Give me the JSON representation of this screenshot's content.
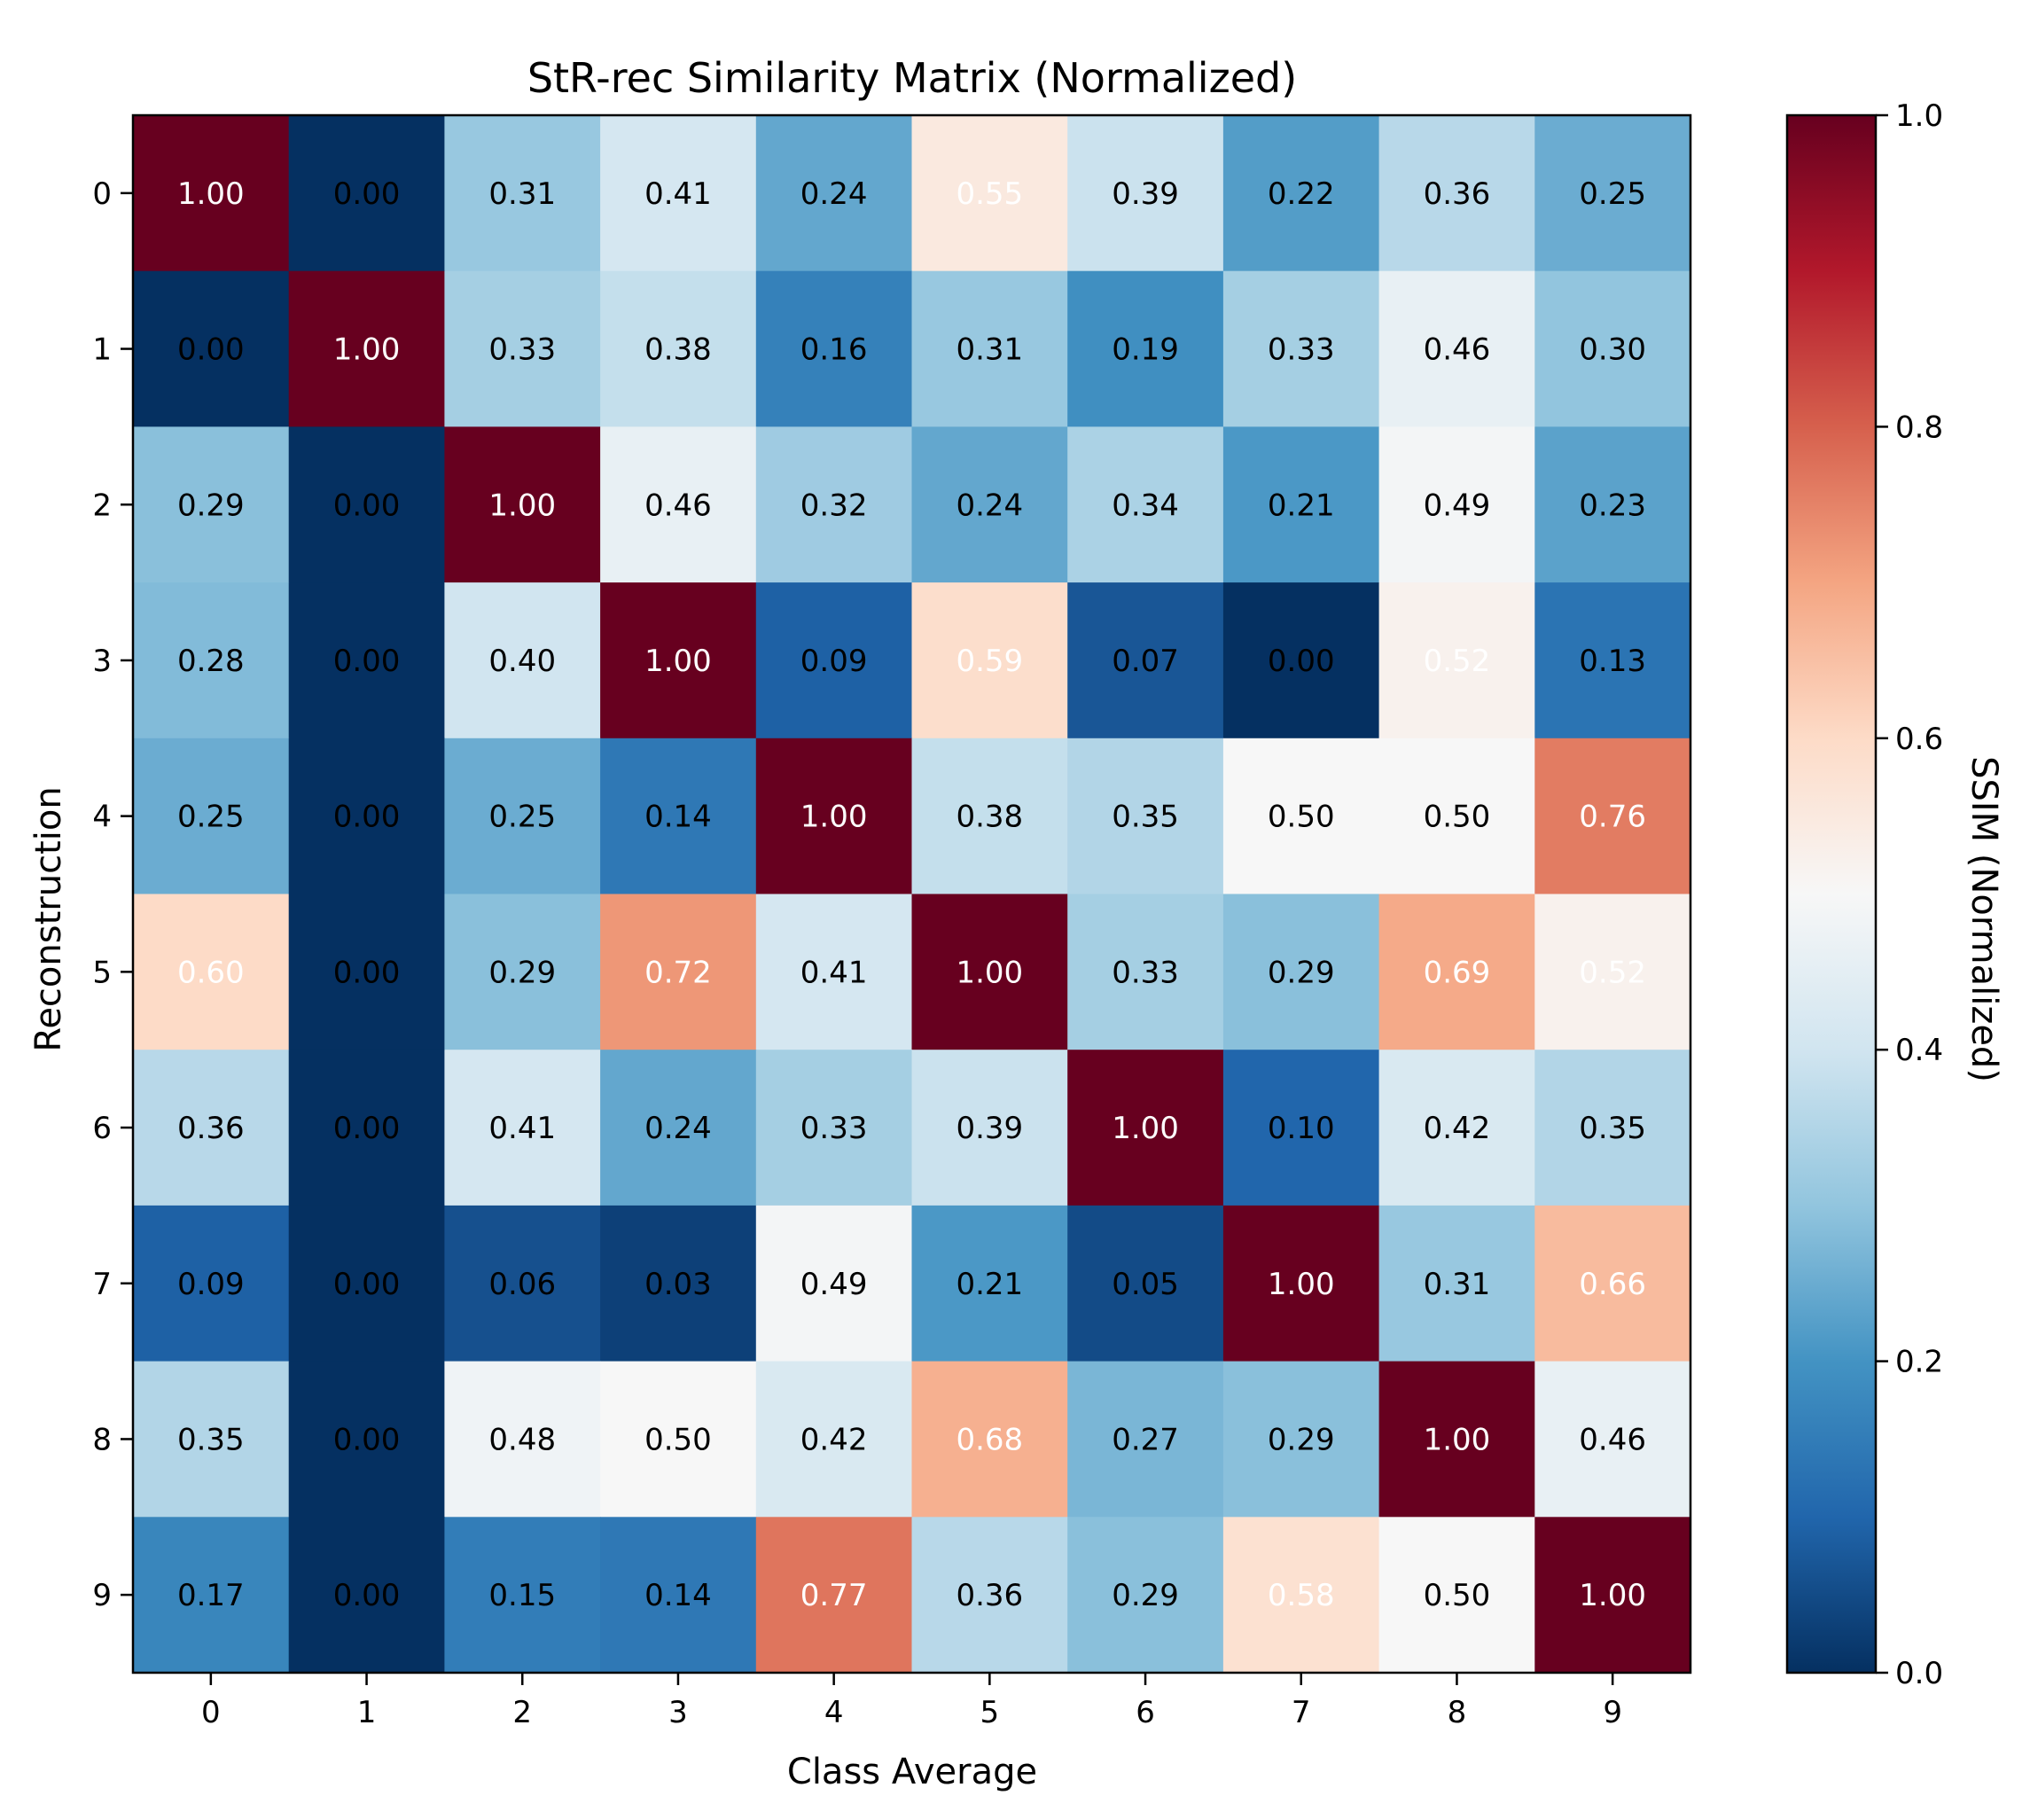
{
  "chart_data": {
    "type": "heatmap",
    "title": "StR-rec Similarity Matrix (Normalized)",
    "xlabel": "Class Average",
    "ylabel": "Reconstruction",
    "x_categories": [
      "0",
      "1",
      "2",
      "3",
      "4",
      "5",
      "6",
      "7",
      "8",
      "9"
    ],
    "y_categories": [
      "0",
      "1",
      "2",
      "3",
      "4",
      "5",
      "6",
      "7",
      "8",
      "9"
    ],
    "values": [
      [
        1.0,
        0.0,
        0.31,
        0.41,
        0.24,
        0.55,
        0.39,
        0.22,
        0.36,
        0.25
      ],
      [
        0.0,
        1.0,
        0.33,
        0.38,
        0.16,
        0.31,
        0.19,
        0.33,
        0.46,
        0.3
      ],
      [
        0.29,
        0.0,
        1.0,
        0.46,
        0.32,
        0.24,
        0.34,
        0.21,
        0.49,
        0.23
      ],
      [
        0.28,
        0.0,
        0.4,
        1.0,
        0.09,
        0.59,
        0.07,
        0.0,
        0.52,
        0.13
      ],
      [
        0.25,
        0.0,
        0.25,
        0.14,
        1.0,
        0.38,
        0.35,
        0.5,
        0.5,
        0.76
      ],
      [
        0.6,
        0.0,
        0.29,
        0.72,
        0.41,
        1.0,
        0.33,
        0.29,
        0.69,
        0.52
      ],
      [
        0.36,
        0.0,
        0.41,
        0.24,
        0.33,
        0.39,
        1.0,
        0.1,
        0.42,
        0.35
      ],
      [
        0.09,
        0.0,
        0.06,
        0.03,
        0.49,
        0.21,
        0.05,
        1.0,
        0.31,
        0.66
      ],
      [
        0.35,
        0.0,
        0.48,
        0.5,
        0.42,
        0.68,
        0.27,
        0.29,
        1.0,
        0.46
      ],
      [
        0.17,
        0.0,
        0.15,
        0.14,
        0.77,
        0.36,
        0.29,
        0.58,
        0.5,
        1.0
      ]
    ],
    "value_format": "0.00",
    "colormap": "RdBu_r",
    "colormap_stops": [
      "#053061",
      "#2166ac",
      "#4393c3",
      "#92c5de",
      "#d1e5f0",
      "#f7f7f7",
      "#fddbc7",
      "#f4a582",
      "#d6604d",
      "#b2182b",
      "#67001f"
    ],
    "color_range": [
      0.0,
      1.0
    ],
    "colorbar": {
      "label": "SSIM (Normalized)",
      "ticks": [
        0.0,
        0.2,
        0.4,
        0.6,
        0.8,
        1.0
      ],
      "tick_labels": [
        "0.0",
        "0.2",
        "0.4",
        "0.6",
        "0.8",
        "1.0"
      ]
    },
    "grid": false,
    "legend": "none"
  }
}
